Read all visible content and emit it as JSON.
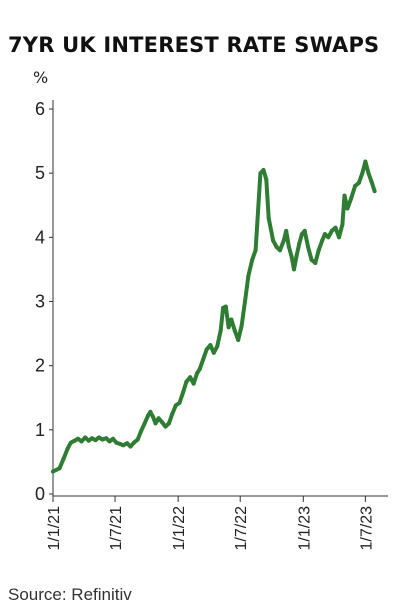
{
  "title": "7YR UK INTEREST RATE SWAPS",
  "source": "Source: Refinitiv",
  "chart_data": {
    "type": "line",
    "title": "7YR UK INTEREST RATE SWAPS",
    "xlabel": "",
    "ylabel": "%",
    "ylim": [
      0,
      6
    ],
    "xlim": [
      "2021-01-01",
      "2023-09-05"
    ],
    "yticks": [
      "0",
      "1",
      "2",
      "3",
      "4",
      "5",
      "6"
    ],
    "xticks": [
      {
        "date": "2021-01-01",
        "label": "1/1/21"
      },
      {
        "date": "2021-07-01",
        "label": "1/7/21"
      },
      {
        "date": "2022-01-01",
        "label": "1/1/22"
      },
      {
        "date": "2022-07-01",
        "label": "1/7/22"
      },
      {
        "date": "2023-01-01",
        "label": "1/1/23"
      },
      {
        "date": "2023-07-01",
        "label": "1/7/23"
      }
    ],
    "grid": false,
    "colors": {
      "line": "#2e7d32",
      "axis": "#333333"
    },
    "series": [
      {
        "points": [
          [
            "2021-01-01",
            0.35
          ],
          [
            "2021-01-20",
            0.4
          ],
          [
            "2021-02-01",
            0.55
          ],
          [
            "2021-02-12",
            0.7
          ],
          [
            "2021-02-22",
            0.8
          ],
          [
            "2021-03-05",
            0.83
          ],
          [
            "2021-03-15",
            0.86
          ],
          [
            "2021-03-25",
            0.82
          ],
          [
            "2021-04-05",
            0.88
          ],
          [
            "2021-04-15",
            0.83
          ],
          [
            "2021-04-25",
            0.87
          ],
          [
            "2021-05-05",
            0.84
          ],
          [
            "2021-05-15",
            0.88
          ],
          [
            "2021-05-25",
            0.85
          ],
          [
            "2021-06-05",
            0.87
          ],
          [
            "2021-06-15",
            0.82
          ],
          [
            "2021-06-25",
            0.86
          ],
          [
            "2021-07-05",
            0.8
          ],
          [
            "2021-07-15",
            0.78
          ],
          [
            "2021-07-25",
            0.76
          ],
          [
            "2021-08-05",
            0.79
          ],
          [
            "2021-08-15",
            0.74
          ],
          [
            "2021-08-25",
            0.8
          ],
          [
            "2021-09-05",
            0.85
          ],
          [
            "2021-09-15",
            0.98
          ],
          [
            "2021-09-25",
            1.1
          ],
          [
            "2021-10-05",
            1.22
          ],
          [
            "2021-10-12",
            1.28
          ],
          [
            "2021-10-20",
            1.2
          ],
          [
            "2021-10-27",
            1.1
          ],
          [
            "2021-11-05",
            1.18
          ],
          [
            "2021-11-15",
            1.12
          ],
          [
            "2021-11-25",
            1.05
          ],
          [
            "2021-12-05",
            1.1
          ],
          [
            "2021-12-15",
            1.25
          ],
          [
            "2021-12-25",
            1.38
          ],
          [
            "2022-01-05",
            1.42
          ],
          [
            "2022-01-15",
            1.58
          ],
          [
            "2022-01-25",
            1.75
          ],
          [
            "2022-02-05",
            1.82
          ],
          [
            "2022-02-15",
            1.72
          ],
          [
            "2022-02-25",
            1.88
          ],
          [
            "2022-03-05",
            1.95
          ],
          [
            "2022-03-15",
            2.1
          ],
          [
            "2022-03-25",
            2.25
          ],
          [
            "2022-04-05",
            2.32
          ],
          [
            "2022-04-15",
            2.2
          ],
          [
            "2022-04-25",
            2.3
          ],
          [
            "2022-05-05",
            2.55
          ],
          [
            "2022-05-12",
            2.9
          ],
          [
            "2022-05-20",
            2.92
          ],
          [
            "2022-05-28",
            2.6
          ],
          [
            "2022-06-05",
            2.72
          ],
          [
            "2022-06-15",
            2.55
          ],
          [
            "2022-06-25",
            2.4
          ],
          [
            "2022-07-05",
            2.62
          ],
          [
            "2022-07-15",
            3.0
          ],
          [
            "2022-07-25",
            3.4
          ],
          [
            "2022-08-05",
            3.65
          ],
          [
            "2022-08-15",
            3.8
          ],
          [
            "2022-08-22",
            4.4
          ],
          [
            "2022-08-29",
            5.0
          ],
          [
            "2022-09-07",
            5.05
          ],
          [
            "2022-09-15",
            4.9
          ],
          [
            "2022-09-22",
            4.3
          ],
          [
            "2022-10-05",
            3.95
          ],
          [
            "2022-10-15",
            3.85
          ],
          [
            "2022-10-25",
            3.8
          ],
          [
            "2022-11-05",
            3.95
          ],
          [
            "2022-11-12",
            4.1
          ],
          [
            "2022-11-20",
            3.85
          ],
          [
            "2022-11-28",
            3.7
          ],
          [
            "2022-12-05",
            3.5
          ],
          [
            "2022-12-12",
            3.7
          ],
          [
            "2022-12-20",
            3.9
          ],
          [
            "2022-12-28",
            4.05
          ],
          [
            "2023-01-05",
            4.1
          ],
          [
            "2023-01-15",
            3.85
          ],
          [
            "2023-01-25",
            3.65
          ],
          [
            "2023-02-05",
            3.6
          ],
          [
            "2023-02-15",
            3.8
          ],
          [
            "2023-02-25",
            3.95
          ],
          [
            "2023-03-05",
            4.05
          ],
          [
            "2023-03-15",
            4.0
          ],
          [
            "2023-03-25",
            4.1
          ],
          [
            "2023-04-05",
            4.15
          ],
          [
            "2023-04-15",
            4.0
          ],
          [
            "2023-04-25",
            4.2
          ],
          [
            "2023-05-01",
            4.65
          ],
          [
            "2023-05-10",
            4.45
          ],
          [
            "2023-05-20",
            4.6
          ],
          [
            "2023-06-01",
            4.8
          ],
          [
            "2023-06-12",
            4.85
          ],
          [
            "2023-06-22",
            5.0
          ],
          [
            "2023-07-01",
            5.18
          ],
          [
            "2023-07-10",
            5.0
          ],
          [
            "2023-07-20",
            4.85
          ],
          [
            "2023-07-28",
            4.72
          ]
        ]
      }
    ]
  }
}
